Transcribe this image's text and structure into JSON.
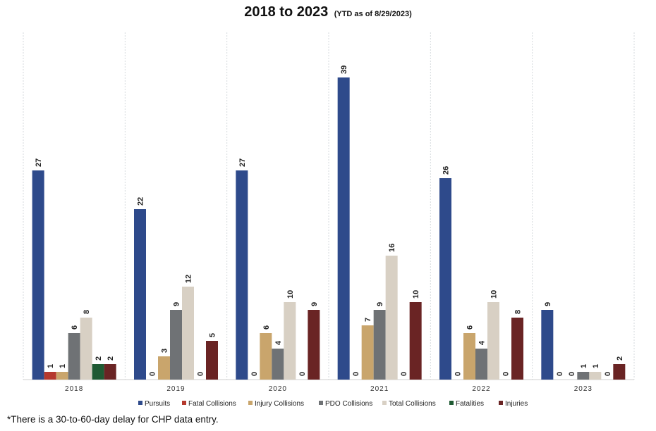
{
  "title": {
    "main": "2018 to 2023",
    "sub": "(YTD as of 8/29/2023)"
  },
  "footnote": "*There is a 30-to-60-day delay for CHP data entry.",
  "chart_data": {
    "type": "bar",
    "title": "2018 to 2023 (YTD as of 8/29/2023)",
    "xlabel": "",
    "ylabel": "",
    "ylim": [
      0,
      42
    ],
    "grid": false,
    "legend": "bottom",
    "categories": [
      "2018",
      "2019",
      "2020",
      "2021",
      "2022",
      "2023"
    ],
    "series": [
      {
        "name": "Pursuits",
        "color": "#2e4a8b",
        "values": [
          27,
          22,
          27,
          39,
          26,
          9
        ]
      },
      {
        "name": "Fatal Collisions",
        "color": "#b5392e",
        "values": [
          1,
          0,
          0,
          0,
          0,
          0
        ]
      },
      {
        "name": "Injury Collisions",
        "color": "#c9a56c",
        "values": [
          1,
          3,
          6,
          7,
          6,
          0
        ]
      },
      {
        "name": "PDO Collisions",
        "color": "#6f7275",
        "values": [
          6,
          9,
          4,
          9,
          4,
          1
        ]
      },
      {
        "name": "Total Collisions",
        "color": "#d8d0c4",
        "values": [
          8,
          12,
          10,
          16,
          10,
          1
        ]
      },
      {
        "name": "Fatalities",
        "color": "#1f5a33",
        "values": [
          2,
          0,
          0,
          0,
          0,
          0
        ]
      },
      {
        "name": "Injuries",
        "color": "#6a2424",
        "values": [
          2,
          5,
          9,
          10,
          8,
          2
        ]
      }
    ]
  }
}
